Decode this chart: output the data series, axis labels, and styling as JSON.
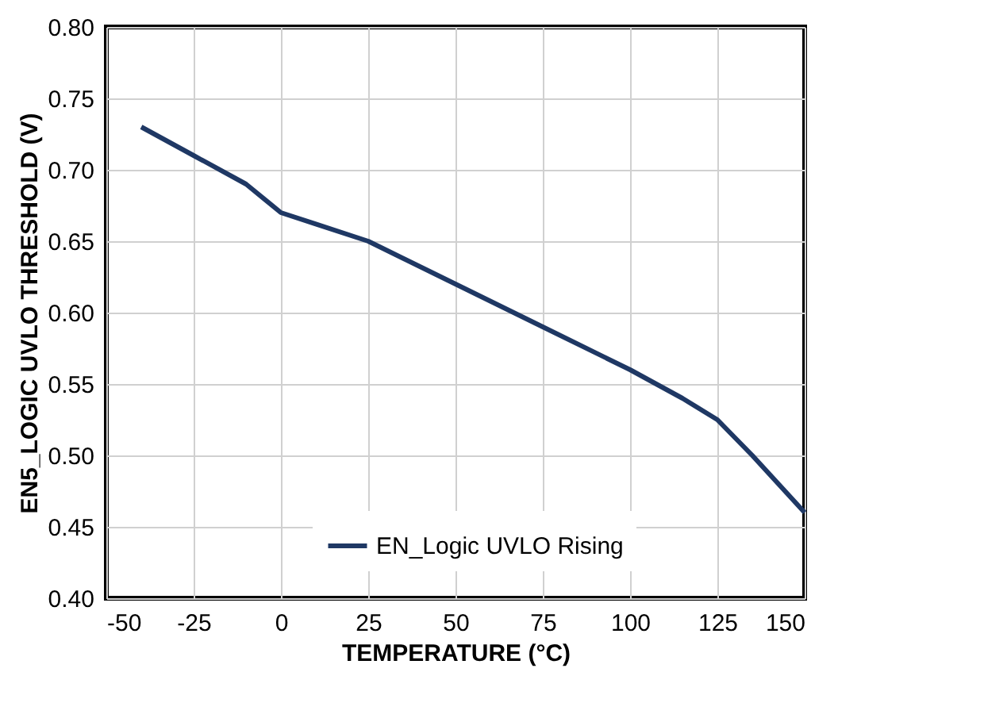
{
  "chart_data": {
    "type": "line",
    "xlabel": "TEMPERATURE (°C)",
    "ylabel": "EN5_LOGIC UVLO THRESHOLD (V)",
    "x": [
      -40,
      -25,
      -10,
      0,
      10,
      25,
      50,
      75,
      100,
      115,
      125,
      135,
      150
    ],
    "series": [
      {
        "name": "EN_Logic UVLO Rising",
        "color": "#1f3864",
        "values": [
          0.73,
          0.71,
          0.69,
          0.67,
          0.662,
          0.65,
          0.62,
          0.59,
          0.56,
          0.54,
          0.525,
          0.5,
          0.46
        ]
      }
    ],
    "xlim": [
      -50,
      150
    ],
    "xticks": [
      -50,
      -25,
      0,
      25,
      50,
      75,
      100,
      125,
      150
    ],
    "ylim": [
      0.4,
      0.8
    ],
    "yticks": [
      {
        "value": 0.4,
        "label": "0.40"
      },
      0.45,
      {
        "value": 0.5,
        "label": "0.50"
      },
      0.55,
      {
        "value": 0.6,
        "label": "0.60"
      },
      0.65,
      {
        "value": 0.7,
        "label": "0.70"
      },
      0.75,
      {
        "value": 0.8,
        "label": "0.80"
      }
    ],
    "grid": true,
    "legend": "bottom",
    "marker": "none",
    "line_style": "solid"
  }
}
